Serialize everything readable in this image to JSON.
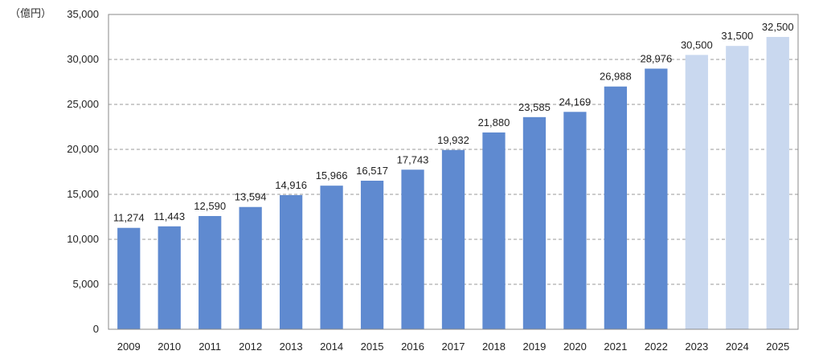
{
  "chart_data": {
    "type": "bar",
    "unit_label": "（億円）",
    "categories": [
      "2009",
      "2010",
      "2011",
      "2012",
      "2013",
      "2014",
      "2015",
      "2016",
      "2017",
      "2018",
      "2019",
      "2020",
      "2021",
      "2022",
      "2023",
      "2024",
      "2025"
    ],
    "values": [
      11274,
      11443,
      12590,
      13594,
      14916,
      15966,
      16517,
      17743,
      19932,
      21880,
      23585,
      24169,
      26988,
      28976,
      30500,
      31500,
      32500
    ],
    "value_labels": [
      "11,274",
      "11,443",
      "12,590",
      "13,594",
      "14,916",
      "15,966",
      "16,517",
      "17,743",
      "19,932",
      "21,880",
      "23,585",
      "24,169",
      "26,988",
      "28,976",
      "30,500",
      "31,500",
      "32,500"
    ],
    "forecast_from_index": 14,
    "ylim": [
      0,
      35000
    ],
    "yticks": [
      0,
      5000,
      10000,
      15000,
      20000,
      25000,
      30000,
      35000
    ],
    "ytick_labels": [
      "0",
      "5,000",
      "10,000",
      "15,000",
      "20,000",
      "25,000",
      "30,000",
      "35,000"
    ],
    "grid": "dashed-horizontal",
    "colors": {
      "actual": "#5f8ad0",
      "forecast": "#c9d8ef",
      "grid": "#9a9a9a",
      "axis": "#8a8a8a"
    },
    "title": "",
    "xlabel": "",
    "ylabel": ""
  }
}
